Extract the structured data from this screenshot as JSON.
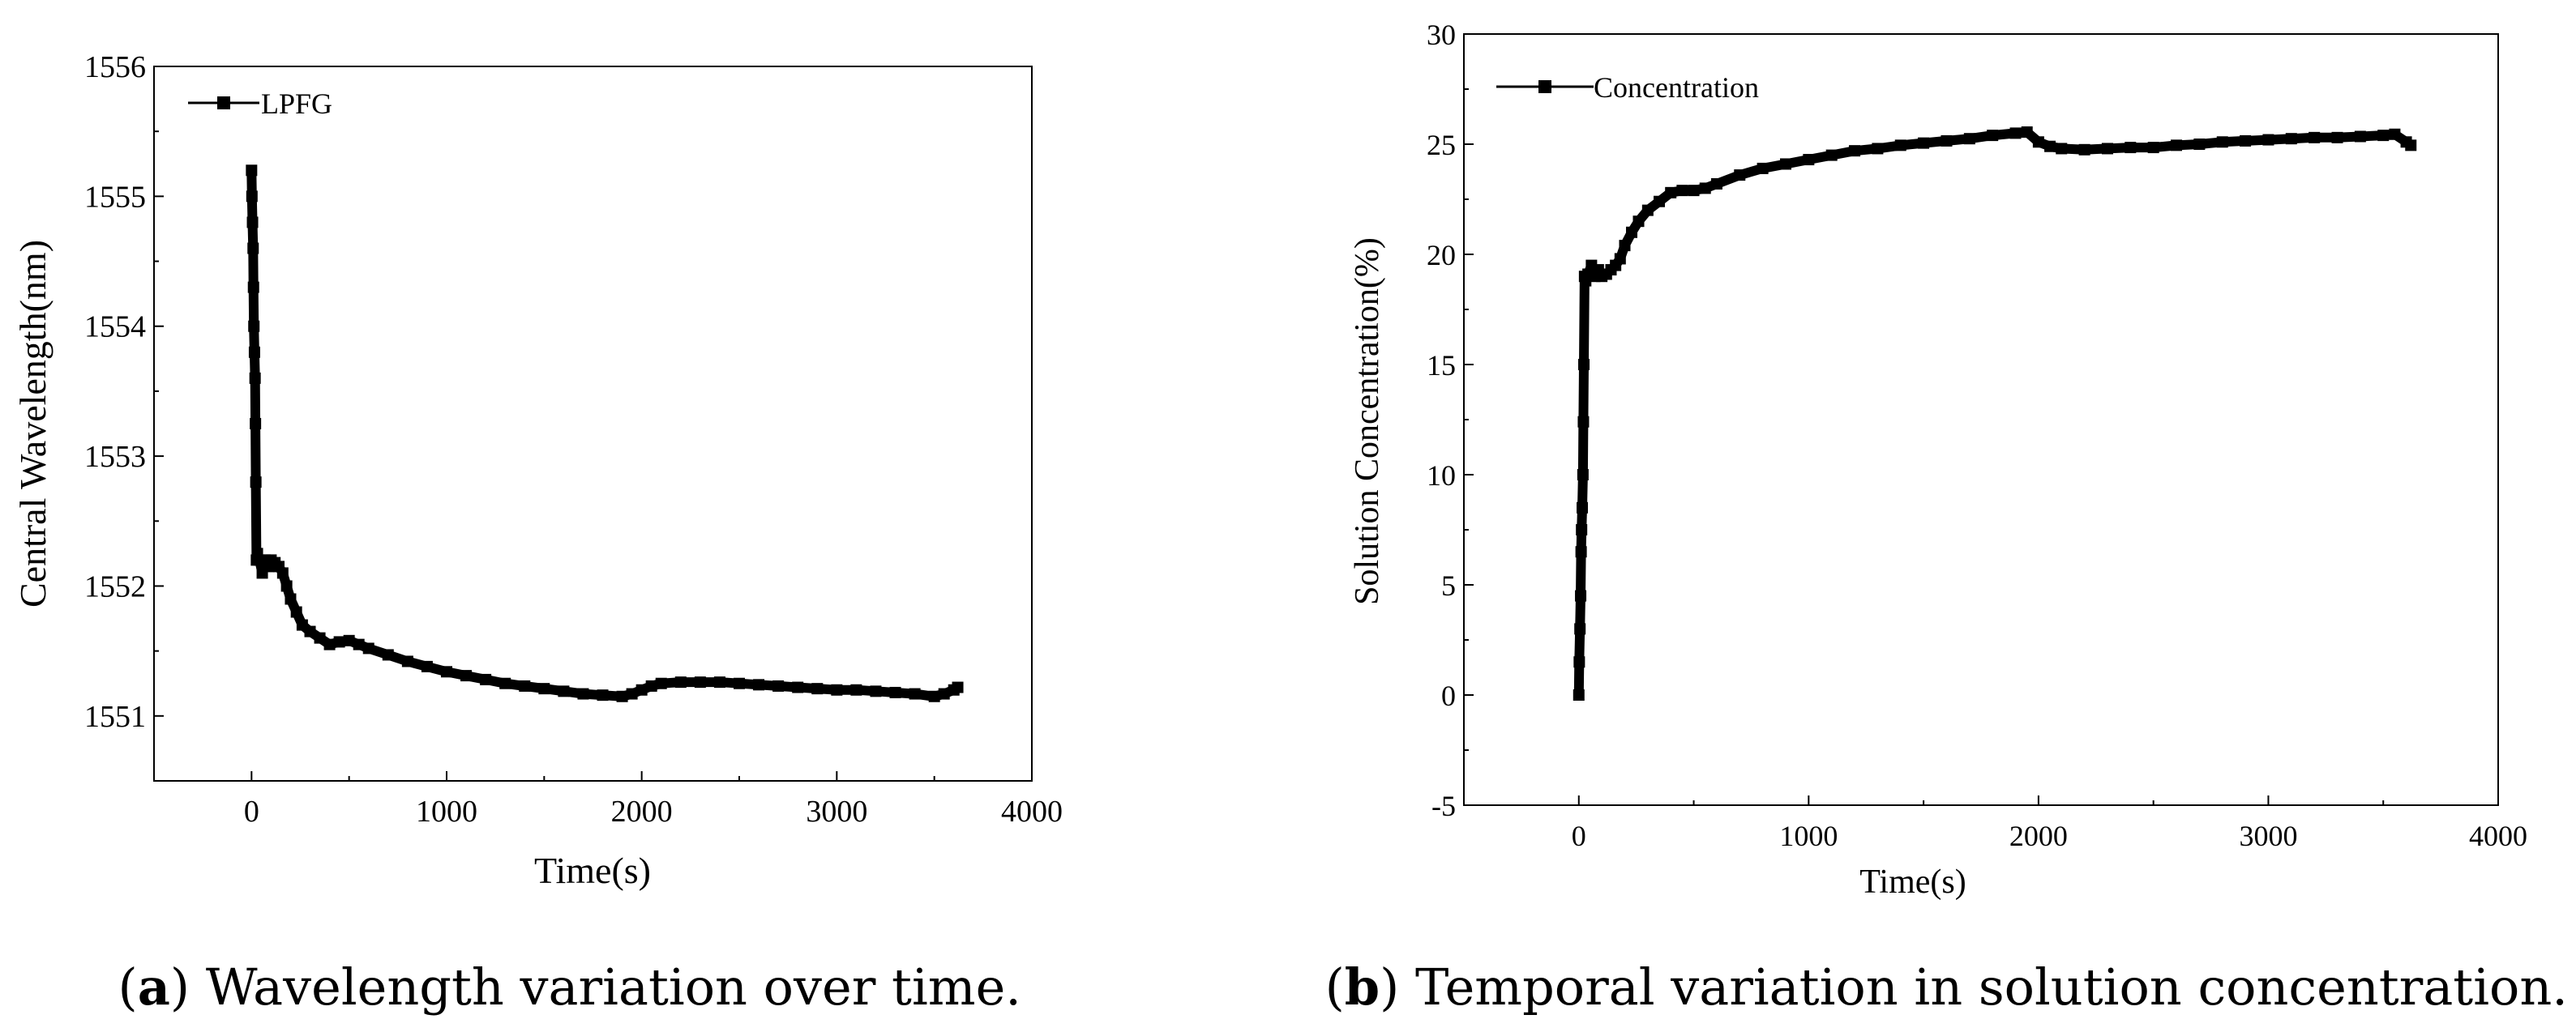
{
  "chart_data": [
    {
      "type": "line",
      "caption": {
        "open": "(",
        "label": "a",
        "text": ") Wavelength variation over time."
      },
      "xlabel": "Time(s)",
      "ylabel": "Central Wavelength(nm)",
      "xlim": [
        -500,
        4000
      ],
      "ylim": [
        1550.5,
        1556
      ],
      "xticks": [
        0,
        1000,
        2000,
        3000,
        4000
      ],
      "yticks": [
        1551,
        1552,
        1553,
        1554,
        1555,
        1556
      ],
      "legend": {
        "label": "LPFG",
        "position": "top-left"
      },
      "series": [
        {
          "name": "LPFG",
          "x": [
            0,
            2,
            5,
            8,
            10,
            12,
            15,
            18,
            20,
            22,
            25,
            30,
            40,
            55,
            70,
            85,
            100,
            120,
            140,
            160,
            180,
            200,
            230,
            260,
            300,
            350,
            400,
            450,
            500,
            550,
            600,
            700,
            800,
            900,
            1000,
            1100,
            1200,
            1300,
            1400,
            1500,
            1600,
            1700,
            1800,
            1900,
            1950,
            2000,
            2050,
            2100,
            2200,
            2300,
            2400,
            2500,
            2600,
            2700,
            2800,
            2900,
            3000,
            3100,
            3200,
            3300,
            3400,
            3500,
            3550,
            3600,
            3620
          ],
          "y": [
            1555.2,
            1555.0,
            1554.8,
            1554.6,
            1554.3,
            1554.0,
            1553.8,
            1553.6,
            1553.25,
            1552.8,
            1552.2,
            1552.25,
            1552.2,
            1552.1,
            1552.2,
            1552.15,
            1552.2,
            1552.18,
            1552.15,
            1552.1,
            1552.0,
            1551.9,
            1551.8,
            1551.7,
            1551.65,
            1551.6,
            1551.55,
            1551.57,
            1551.58,
            1551.55,
            1551.52,
            1551.47,
            1551.42,
            1551.38,
            1551.34,
            1551.31,
            1551.28,
            1551.25,
            1551.23,
            1551.21,
            1551.19,
            1551.17,
            1551.16,
            1551.15,
            1551.17,
            1551.2,
            1551.23,
            1551.25,
            1551.26,
            1551.26,
            1551.26,
            1551.25,
            1551.24,
            1551.23,
            1551.22,
            1551.21,
            1551.2,
            1551.2,
            1551.19,
            1551.18,
            1551.17,
            1551.15,
            1551.17,
            1551.2,
            1551.22
          ]
        }
      ]
    },
    {
      "type": "line",
      "caption": {
        "open": "(",
        "label": "b",
        "text": ") Temporal variation in solution concentration."
      },
      "xlabel": "Time(s)",
      "ylabel": "Solution Concentration(%)",
      "xlim": [
        -500,
        4000
      ],
      "ylim": [
        -5,
        30
      ],
      "xticks": [
        0,
        1000,
        2000,
        3000,
        4000
      ],
      "yticks": [
        -5,
        0,
        5,
        10,
        15,
        20,
        25,
        30
      ],
      "legend": {
        "label": "Concentration",
        "position": "top-left"
      },
      "series": [
        {
          "name": "Concentration",
          "x": [
            0,
            2,
            5,
            8,
            10,
            12,
            15,
            18,
            20,
            22,
            25,
            30,
            40,
            55,
            70,
            85,
            100,
            120,
            140,
            160,
            180,
            200,
            230,
            260,
            300,
            350,
            400,
            450,
            500,
            550,
            600,
            700,
            800,
            900,
            1000,
            1100,
            1200,
            1300,
            1400,
            1500,
            1600,
            1700,
            1800,
            1900,
            1950,
            2000,
            2050,
            2100,
            2200,
            2300,
            2400,
            2500,
            2600,
            2700,
            2800,
            2900,
            3000,
            3100,
            3200,
            3300,
            3400,
            3500,
            3550,
            3600,
            3620
          ],
          "y": [
            0,
            1.5,
            3,
            4.5,
            6.5,
            7.5,
            8.5,
            10,
            12.4,
            15,
            19,
            18.8,
            19.1,
            19.5,
            19.0,
            19.3,
            19.0,
            19.1,
            19.3,
            19.5,
            19.8,
            20.4,
            21.0,
            21.5,
            22.0,
            22.4,
            22.8,
            22.9,
            22.9,
            23.0,
            23.2,
            23.6,
            23.9,
            24.1,
            24.3,
            24.5,
            24.7,
            24.8,
            24.95,
            25.05,
            25.15,
            25.25,
            25.4,
            25.5,
            25.55,
            25.1,
            24.9,
            24.8,
            24.75,
            24.8,
            24.85,
            24.85,
            24.95,
            25.0,
            25.1,
            25.15,
            25.2,
            25.25,
            25.3,
            25.3,
            25.35,
            25.4,
            25.45,
            25.1,
            24.95
          ]
        }
      ]
    }
  ]
}
